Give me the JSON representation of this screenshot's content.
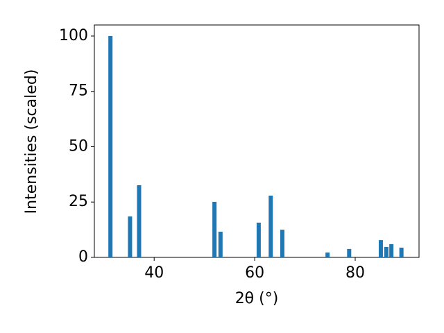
{
  "chart_data": {
    "type": "bar",
    "x_label": "2θ (°)",
    "y_label": "Intensities (scaled)",
    "x": [
      31.3,
      35.2,
      37.0,
      52.0,
      53.2,
      60.8,
      63.2,
      65.5,
      74.5,
      78.8,
      85.1,
      86.2,
      87.2,
      89.2
    ],
    "values": [
      100,
      18.5,
      32.6,
      25.1,
      11.6,
      15.7,
      27.9,
      12.5,
      2.2,
      3.8,
      7.8,
      4.7,
      6.0,
      4.4
    ],
    "color": "#1f77b4",
    "xlim": [
      28.1,
      92.7
    ],
    "xticks": [
      40,
      60,
      80
    ],
    "ylim": [
      0,
      105
    ],
    "yticks": [
      0,
      25,
      50,
      75,
      100
    ],
    "grid": false
  }
}
